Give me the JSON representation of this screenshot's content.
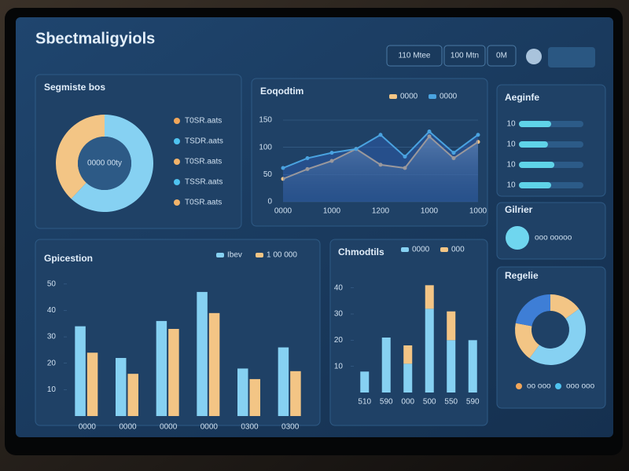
{
  "header": {
    "title": "Sbectmaligyiols",
    "buttons": [
      "110 Mtee",
      "100 Mtn",
      "0M"
    ]
  },
  "sidebar": {
    "title": "Gilrier",
    "stat": "ooo ooooo"
  },
  "chart_data": [
    {
      "type": "pie",
      "title": "Segmiste bos",
      "values": [
        62,
        38
      ],
      "colors": [
        "#86d1f2",
        "#f3c585"
      ],
      "center_text": "0000 00ty",
      "legend": [
        {
          "name": "T0SR.aats",
          "color": "#f2a65a"
        },
        {
          "name": "TSDR.aats",
          "color": "#4fc3f0"
        },
        {
          "name": "T0SR.aats",
          "color": "#f2b36a"
        },
        {
          "name": "TSSR.aats",
          "color": "#4fc3f0"
        },
        {
          "name": "T0SR.aats",
          "color": "#f2b36a"
        }
      ]
    },
    {
      "type": "line",
      "title": "Eoqodtim",
      "categories": [
        "0000",
        null,
        "1000",
        null,
        "1200",
        null,
        "1000",
        null,
        "1000"
      ],
      "series": [
        {
          "name": "0000",
          "color": "#f3c585",
          "values": [
            42,
            60,
            75,
            97,
            68,
            62,
            120,
            80,
            110
          ]
        },
        {
          "name": "0000",
          "color": "#4aa3e0",
          "values": [
            62,
            80,
            90,
            97,
            123,
            83,
            129,
            90,
            123
          ]
        }
      ],
      "ylim": [
        0,
        150
      ],
      "yticks": [
        0,
        50,
        100,
        150
      ],
      "grid": true
    },
    {
      "type": "bar",
      "title": "Gpicestion",
      "categories": [
        "0000",
        "0000",
        "0000",
        "0000",
        "0300",
        "0300"
      ],
      "series": [
        {
          "name": "Ibev",
          "color": "#86d1f2",
          "values": [
            34,
            22,
            36,
            47,
            18,
            26
          ]
        },
        {
          "name": "1 00 000",
          "color": "#f3c585",
          "values": [
            24,
            16,
            33,
            39,
            14,
            17
          ]
        }
      ],
      "ylim": [
        0,
        55
      ],
      "yticks": [
        10,
        20,
        30,
        40,
        50
      ]
    },
    {
      "type": "stacked",
      "title": "Chmodtils",
      "categories": [
        "510",
        "590",
        "000",
        "500",
        "550",
        "590"
      ],
      "series": [
        {
          "name": "0000",
          "color": "#86d1f2",
          "values": [
            8,
            21,
            11,
            32,
            20,
            20
          ]
        },
        {
          "name": "000",
          "color": "#f3c585",
          "values": [
            0,
            0,
            7,
            9,
            11,
            0
          ]
        }
      ],
      "ylim": [
        0,
        42
      ],
      "yticks": [
        10,
        20,
        30,
        40
      ]
    },
    {
      "type": "progress",
      "title": "Aeginfe",
      "labels": [
        "10",
        "10",
        "10",
        "10"
      ],
      "values": [
        50,
        45,
        55,
        50
      ],
      "xlim": [
        0,
        100
      ],
      "color": "#5fd3e8"
    },
    {
      "type": "pie",
      "title": "Regelie",
      "values": [
        15,
        45,
        18,
        22
      ],
      "colors": [
        "#f3c585",
        "#86d1f2",
        "#f3c585",
        "#3e7ed6"
      ],
      "legend": [
        {
          "name": "oo ooo",
          "color": "#f2a65a"
        },
        {
          "name": "ooo ooo",
          "color": "#4fc3f0"
        }
      ]
    }
  ]
}
